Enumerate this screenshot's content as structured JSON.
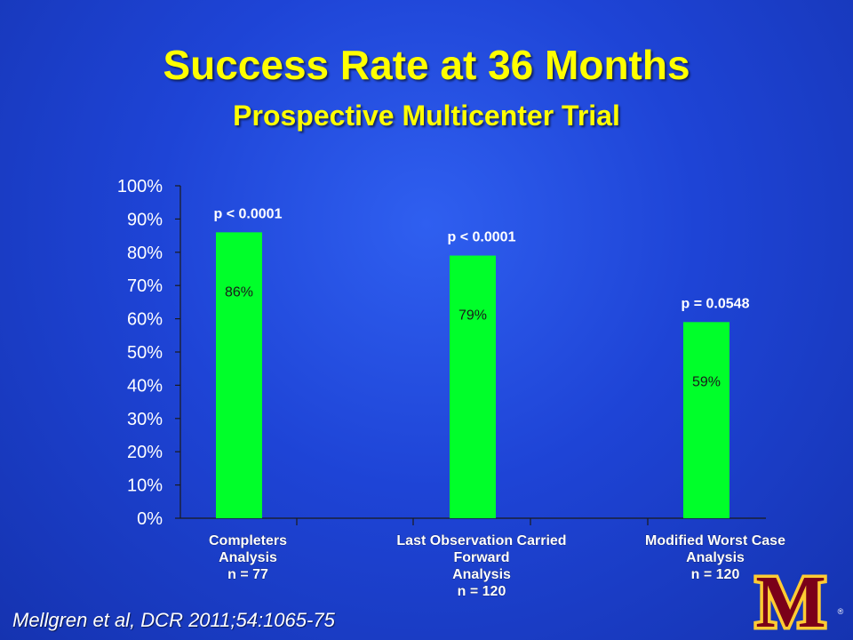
{
  "slide": {
    "title": "Success Rate at 36 Months",
    "subtitle": "Prospective Multicenter Trial",
    "citation": "Mellgren et al, DCR 2011;54:1065-75"
  },
  "logo": {
    "letter": "M",
    "mark": "®"
  },
  "colors": {
    "bar": "#00ff2a",
    "text": "#ffffff",
    "title": "#ffff00",
    "logo_maroon": "#7a0019",
    "logo_gold": "#ffcc33"
  },
  "chart_data": {
    "type": "bar",
    "categories": [
      [
        "Completers",
        "Analysis",
        "n = 77"
      ],
      [
        "Last Observation Carried",
        "Forward",
        "Analysis",
        "n = 120"
      ],
      [
        "Modified Worst Case",
        "Analysis",
        "n = 120"
      ]
    ],
    "values": [
      86,
      79,
      59
    ],
    "value_labels": [
      "86%",
      "79%",
      "59%"
    ],
    "annotations": [
      "p < 0.0001",
      "p < 0.0001",
      "p = 0.0548"
    ],
    "y_ticks": [
      "0%",
      "10%",
      "20%",
      "30%",
      "40%",
      "50%",
      "60%",
      "70%",
      "80%",
      "90%",
      "100%"
    ],
    "ylim": [
      0,
      100
    ],
    "xlabel": "",
    "ylabel": "",
    "grid": false,
    "legend": "none"
  }
}
